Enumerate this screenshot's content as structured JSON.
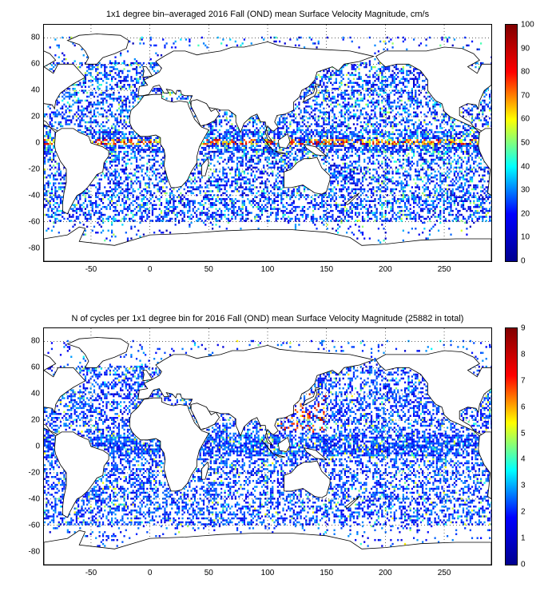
{
  "panels": [
    {
      "title": "1x1 degree bin–averaged 2016 Fall (OND) mean Surface Velocity Magnitude, cm/s",
      "x_ticks": [
        "-50",
        "0",
        "50",
        "100",
        "150",
        "200",
        "250"
      ],
      "y_ticks": [
        "80",
        "60",
        "40",
        "20",
        "0",
        "-20",
        "-40",
        "-60",
        "-80"
      ],
      "colorbar": {
        "ticks": [
          "100",
          "90",
          "80",
          "70",
          "60",
          "50",
          "40",
          "30",
          "20",
          "10",
          "0"
        ],
        "range": [
          0,
          100
        ],
        "colormap": "jet"
      }
    },
    {
      "title": "N of cycles per 1x1 degree bin for 2016 Fall (OND) mean Surface Velocity Magnitude (25882 in total)",
      "x_ticks": [
        "-50",
        "0",
        "50",
        "100",
        "150",
        "200",
        "250"
      ],
      "y_ticks": [
        "80",
        "60",
        "40",
        "20",
        "0",
        "-20",
        "-40",
        "-60",
        "-80"
      ],
      "colorbar": {
        "ticks": [
          "9",
          "8",
          "7",
          "6",
          "5",
          "4",
          "3",
          "2",
          "1",
          "0"
        ],
        "range": [
          0,
          9
        ],
        "colormap": "jet"
      }
    }
  ],
  "map": {
    "lon_range": [
      -90,
      290
    ],
    "lat_range": [
      -90,
      90
    ],
    "grid": "dotted",
    "coastline_color": "#000000"
  }
}
